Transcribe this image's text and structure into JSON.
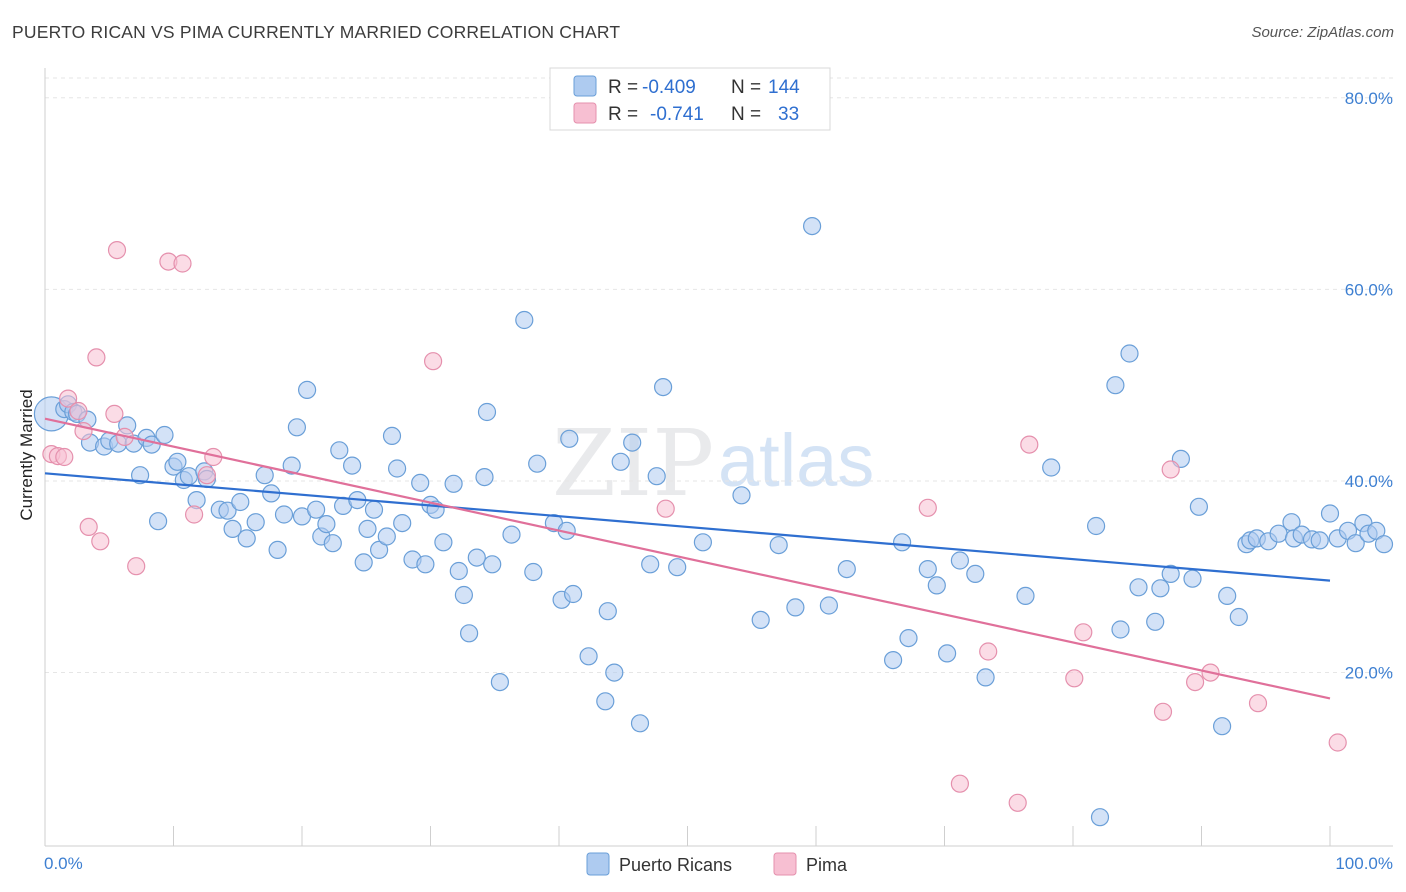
{
  "title": "PUERTO RICAN VS PIMA CURRENTLY MARRIED CORRELATION CHART",
  "source": "Source: ZipAtlas.com",
  "watermark": {
    "zip": "ZIP",
    "atlas": "atlas"
  },
  "legend": {
    "rows": [
      {
        "r_label": "R =",
        "r_value": "-0.409",
        "n_label": "N =",
        "n_value": "144",
        "color": "#aecbf0",
        "border": "#6a9fd8"
      },
      {
        "r_label": "R =",
        "r_value": "-0.741",
        "n_label": "N =",
        "n_value": "33",
        "color": "#f7bfd2",
        "border": "#e590ad"
      }
    ]
  },
  "bottom_legend": [
    {
      "label": "Puerto Ricans",
      "color": "#aecbf0",
      "border": "#6a9fd8"
    },
    {
      "label": "Pima",
      "color": "#f7bfd2",
      "border": "#e590ad"
    }
  ],
  "chart_data": {
    "type": "scatter",
    "title": "PUERTO RICAN VS PIMA CURRENTLY MARRIED CORRELATION CHART",
    "xlabel": "",
    "ylabel": "Currently Married",
    "xlim": [
      0,
      100
    ],
    "ylim": [
      2,
      82
    ],
    "x_ticks": [
      "0.0%",
      "100.0%"
    ],
    "y_ticks": [
      {
        "value": 20,
        "label": "20.0%"
      },
      {
        "value": 40,
        "label": "40.0%"
      },
      {
        "value": 60,
        "label": "60.0%"
      },
      {
        "value": 80,
        "label": "80.0%"
      }
    ],
    "grid": true,
    "legend_position": "top-center",
    "series": [
      {
        "name": "Puerto Ricans",
        "color": "#6a9fd8",
        "fill": "#aecbf0",
        "trend": {
          "x": [
            0,
            100
          ],
          "y": [
            40.8,
            29.6
          ],
          "color": "#2f6fd0"
        },
        "points": [
          [
            0.5,
            47
          ],
          [
            1.5,
            47.5
          ],
          [
            1.8,
            48
          ],
          [
            2.2,
            47.2
          ],
          [
            2.5,
            47
          ],
          [
            3.3,
            46.4
          ],
          [
            3.5,
            44
          ],
          [
            4.6,
            43.6
          ],
          [
            5,
            44.2
          ],
          [
            5.7,
            43.9
          ],
          [
            6.4,
            45.8
          ],
          [
            6.9,
            43.9
          ],
          [
            7.4,
            40.6
          ],
          [
            7.9,
            44.5
          ],
          [
            8.3,
            43.8
          ],
          [
            8.8,
            35.8
          ],
          [
            9.3,
            44.8
          ],
          [
            10,
            41.5
          ],
          [
            10.3,
            42
          ],
          [
            10.8,
            40.1
          ],
          [
            11.2,
            40.5
          ],
          [
            11.8,
            38
          ],
          [
            12.4,
            41
          ],
          [
            12.6,
            40.2
          ],
          [
            13.6,
            37
          ],
          [
            14.2,
            36.9
          ],
          [
            14.6,
            35
          ],
          [
            15.2,
            37.8
          ],
          [
            15.7,
            34
          ],
          [
            16.4,
            35.7
          ],
          [
            17.1,
            40.6
          ],
          [
            17.6,
            38.7
          ],
          [
            18.1,
            32.8
          ],
          [
            18.6,
            36.5
          ],
          [
            19.2,
            41.6
          ],
          [
            19.6,
            45.6
          ],
          [
            20,
            36.3
          ],
          [
            20.4,
            49.5
          ],
          [
            21.1,
            37
          ],
          [
            21.5,
            34.2
          ],
          [
            21.9,
            35.5
          ],
          [
            22.4,
            33.5
          ],
          [
            22.9,
            43.2
          ],
          [
            23.2,
            37.4
          ],
          [
            23.9,
            41.6
          ],
          [
            24.3,
            38
          ],
          [
            24.8,
            31.5
          ],
          [
            25.1,
            35
          ],
          [
            25.6,
            37
          ],
          [
            26,
            32.8
          ],
          [
            26.6,
            34.2
          ],
          [
            27,
            44.7
          ],
          [
            27.4,
            41.3
          ],
          [
            27.8,
            35.6
          ],
          [
            28.6,
            31.8
          ],
          [
            29.2,
            39.8
          ],
          [
            29.6,
            31.3
          ],
          [
            30,
            37.5
          ],
          [
            30.4,
            37
          ],
          [
            31,
            33.6
          ],
          [
            31.8,
            39.7
          ],
          [
            32.2,
            30.6
          ],
          [
            32.6,
            28.1
          ],
          [
            33,
            24.1
          ],
          [
            33.6,
            32
          ],
          [
            34.2,
            40.4
          ],
          [
            34.4,
            47.2
          ],
          [
            34.8,
            31.3
          ],
          [
            35.4,
            19
          ],
          [
            36.3,
            34.4
          ],
          [
            37.3,
            56.8
          ],
          [
            38,
            30.5
          ],
          [
            38.3,
            41.8
          ],
          [
            39.6,
            35.6
          ],
          [
            40.2,
            27.6
          ],
          [
            40.6,
            34.8
          ],
          [
            40.8,
            44.4
          ],
          [
            41.1,
            28.2
          ],
          [
            42.3,
            21.7
          ],
          [
            43.6,
            17
          ],
          [
            43.8,
            26.4
          ],
          [
            44.3,
            20
          ],
          [
            44.8,
            42
          ],
          [
            45.7,
            44
          ],
          [
            46.3,
            14.7
          ],
          [
            47.1,
            31.3
          ],
          [
            47.6,
            40.5
          ],
          [
            48.1,
            49.8
          ],
          [
            49.2,
            31
          ],
          [
            51.2,
            33.6
          ],
          [
            54.2,
            38.5
          ],
          [
            55.7,
            25.5
          ],
          [
            57.1,
            33.3
          ],
          [
            58.4,
            26.8
          ],
          [
            59.7,
            66.6
          ],
          [
            61,
            27
          ],
          [
            62.4,
            30.8
          ],
          [
            66,
            21.3
          ],
          [
            66.7,
            33.6
          ],
          [
            67.2,
            23.6
          ],
          [
            68.7,
            30.8
          ],
          [
            69.4,
            29.1
          ],
          [
            70.2,
            22
          ],
          [
            71.2,
            31.7
          ],
          [
            72.4,
            30.3
          ],
          [
            73.2,
            19.5
          ],
          [
            76.3,
            28
          ],
          [
            78.3,
            41.4
          ],
          [
            81.8,
            35.3
          ],
          [
            82.1,
            4.9
          ],
          [
            83.3,
            50
          ],
          [
            83.7,
            24.5
          ],
          [
            84.4,
            53.3
          ],
          [
            85.1,
            28.9
          ],
          [
            86.4,
            25.3
          ],
          [
            86.8,
            28.8
          ],
          [
            87.6,
            30.3
          ],
          [
            88.4,
            42.3
          ],
          [
            89.3,
            29.8
          ],
          [
            89.8,
            37.3
          ],
          [
            91.6,
            14.4
          ],
          [
            92,
            28
          ],
          [
            92.9,
            25.8
          ],
          [
            93.5,
            33.4
          ],
          [
            93.8,
            33.8
          ],
          [
            94.3,
            34
          ],
          [
            95.2,
            33.7
          ],
          [
            96,
            34.5
          ],
          [
            97,
            35.7
          ],
          [
            97.2,
            34
          ],
          [
            97.8,
            34.4
          ],
          [
            98.6,
            33.9
          ],
          [
            99.2,
            33.8
          ],
          [
            100,
            36.6
          ],
          [
            100.6,
            34
          ],
          [
            101.4,
            34.8
          ],
          [
            102,
            33.5
          ],
          [
            102.6,
            35.6
          ],
          [
            103,
            34.5
          ],
          [
            103.6,
            34.8
          ],
          [
            104.2,
            33.4
          ]
        ]
      },
      {
        "name": "Pima",
        "color": "#e590ad",
        "fill": "#f7bfd2",
        "trend": {
          "x": [
            0,
            100
          ],
          "y": [
            46.5,
            17.3
          ],
          "color": "#e0709a"
        },
        "points": [
          [
            0.5,
            42.8
          ],
          [
            1,
            42.6
          ],
          [
            1.5,
            42.5
          ],
          [
            1.8,
            48.6
          ],
          [
            2.6,
            47.3
          ],
          [
            3,
            45.2
          ],
          [
            3.4,
            35.2
          ],
          [
            4,
            52.9
          ],
          [
            4.3,
            33.7
          ],
          [
            5.4,
            47
          ],
          [
            5.6,
            64.1
          ],
          [
            6.2,
            44.6
          ],
          [
            7.1,
            31.1
          ],
          [
            9.6,
            62.9
          ],
          [
            10.7,
            62.7
          ],
          [
            11.6,
            36.5
          ],
          [
            12.6,
            40.6
          ],
          [
            13.1,
            42.5
          ],
          [
            30.2,
            52.5
          ],
          [
            48.3,
            37.1
          ],
          [
            68.7,
            37.2
          ],
          [
            71.2,
            8.4
          ],
          [
            73.4,
            22.2
          ],
          [
            75.7,
            6.4
          ],
          [
            76.6,
            43.8
          ],
          [
            80.1,
            19.4
          ],
          [
            80.8,
            24.2
          ],
          [
            87,
            15.9
          ],
          [
            87.6,
            41.2
          ],
          [
            89.5,
            19
          ],
          [
            90.7,
            20
          ],
          [
            94.4,
            16.8
          ],
          [
            100.6,
            12.7
          ]
        ]
      }
    ]
  }
}
